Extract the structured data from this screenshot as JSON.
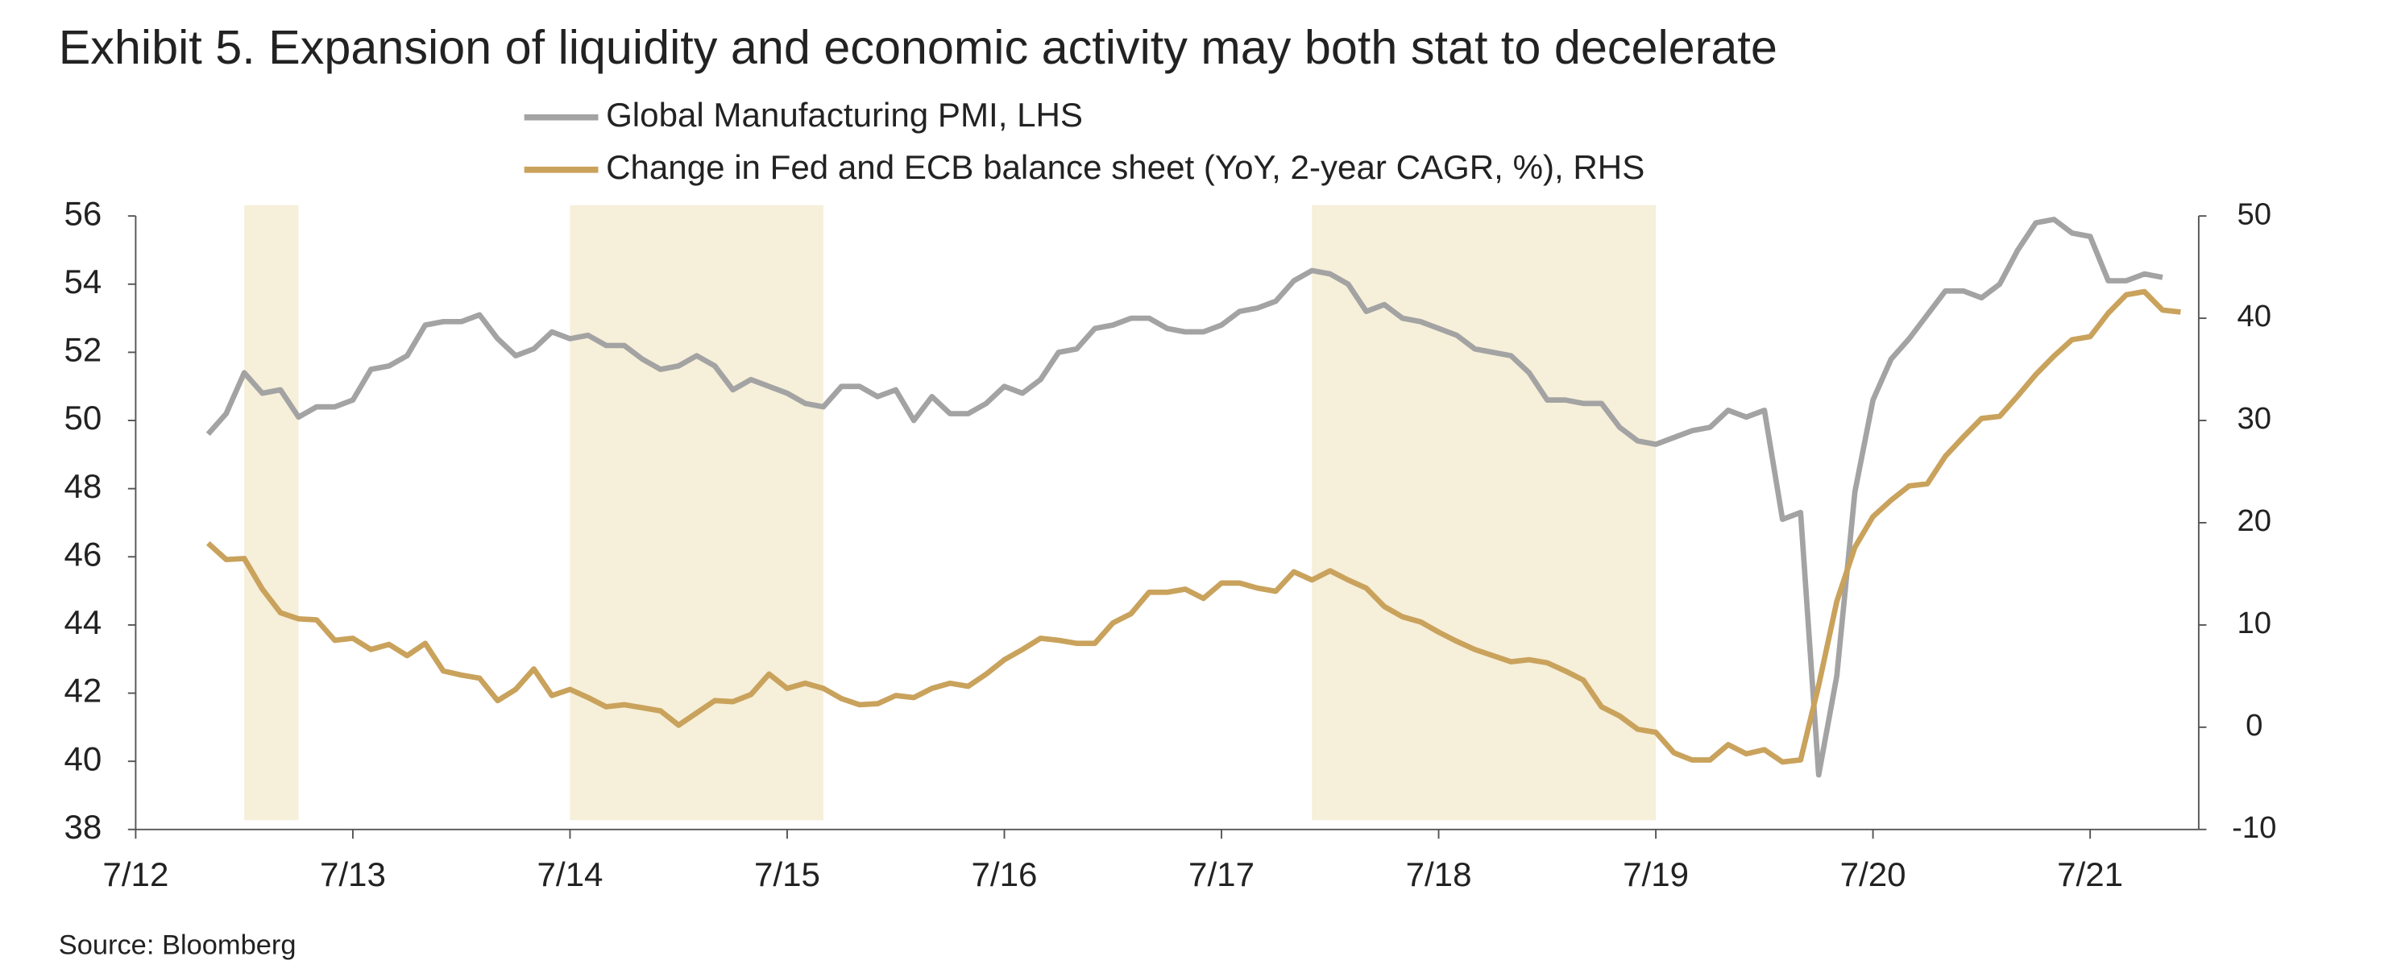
{
  "chart_data": {
    "type": "line",
    "title": "Exhibit 5. Expansion of liquidity and economic activity may both stat to decelerate",
    "source": "Source: Bloomberg",
    "x": [
      "2012-11",
      "2012-12",
      "2013-01",
      "2013-02",
      "2013-03",
      "2013-04",
      "2013-05",
      "2013-06",
      "2013-07",
      "2013-08",
      "2013-09",
      "2013-10",
      "2013-11",
      "2013-12",
      "2014-01",
      "2014-02",
      "2014-03",
      "2014-04",
      "2014-05",
      "2014-06",
      "2014-07",
      "2014-08",
      "2014-09",
      "2014-10",
      "2014-11",
      "2014-12",
      "2015-01",
      "2015-02",
      "2015-03",
      "2015-04",
      "2015-05",
      "2015-06",
      "2015-07",
      "2015-08",
      "2015-09",
      "2015-10",
      "2015-11",
      "2015-12",
      "2016-01",
      "2016-02",
      "2016-03",
      "2016-04",
      "2016-05",
      "2016-06",
      "2016-07",
      "2016-08",
      "2016-09",
      "2016-10",
      "2016-11",
      "2016-12",
      "2017-01",
      "2017-02",
      "2017-03",
      "2017-04",
      "2017-05",
      "2017-06",
      "2017-07",
      "2017-08",
      "2017-09",
      "2017-10",
      "2017-11",
      "2017-12",
      "2018-01",
      "2018-02",
      "2018-03",
      "2018-04",
      "2018-05",
      "2018-06",
      "2018-07",
      "2018-08",
      "2018-09",
      "2018-10",
      "2018-11",
      "2018-12",
      "2019-01",
      "2019-02",
      "2019-03",
      "2019-04",
      "2019-05",
      "2019-06",
      "2019-07",
      "2019-08",
      "2019-09",
      "2019-10",
      "2019-11",
      "2019-12",
      "2020-01",
      "2020-02",
      "2020-03",
      "2020-04",
      "2020-05",
      "2020-06",
      "2020-07",
      "2020-08",
      "2020-09",
      "2020-10",
      "2020-11",
      "2020-12",
      "2021-01",
      "2021-02",
      "2021-03",
      "2021-04",
      "2021-05",
      "2021-06",
      "2021-07",
      "2021-08",
      "2021-09",
      "2021-10",
      "2021-11",
      "2021-12"
    ],
    "series": [
      {
        "name": "Global Manufacturing PMI, LHS",
        "color": "#a3a3a3",
        "axis": "y",
        "values": [
          49.6,
          50.2,
          51.4,
          50.8,
          50.9,
          50.1,
          50.4,
          50.4,
          50.6,
          51.5,
          51.6,
          51.9,
          52.8,
          52.9,
          52.9,
          53.1,
          52.4,
          51.9,
          52.1,
          52.6,
          52.4,
          52.5,
          52.2,
          52.2,
          51.8,
          51.5,
          51.6,
          51.9,
          51.6,
          50.9,
          51.2,
          51.0,
          50.8,
          50.5,
          50.4,
          51.0,
          51.0,
          50.7,
          50.9,
          50.0,
          50.7,
          50.2,
          50.2,
          50.5,
          51.0,
          50.8,
          51.2,
          52.0,
          52.1,
          52.7,
          52.8,
          53.0,
          53.0,
          52.7,
          52.6,
          52.6,
          52.8,
          53.2,
          53.3,
          53.5,
          54.1,
          54.4,
          54.3,
          54.0,
          53.2,
          53.4,
          53.0,
          52.9,
          52.7,
          52.5,
          52.1,
          52.0,
          51.9,
          51.4,
          50.6,
          50.6,
          50.5,
          50.5,
          49.8,
          49.4,
          49.3,
          49.5,
          49.7,
          49.8,
          50.3,
          50.1,
          50.3,
          47.1,
          47.3,
          39.6,
          42.5,
          47.9,
          50.6,
          51.8,
          52.4,
          53.1,
          53.8,
          53.8,
          53.6,
          54.0,
          55.0,
          55.8,
          55.9,
          55.5,
          55.4,
          54.1,
          54.1,
          54.3,
          54.2,
          null
        ]
      },
      {
        "name": "Change in Fed and ECB balance sheet (YoY, 2-year CAGR, %), RHS",
        "color": "#c9a25c",
        "axis": "y2",
        "values": [
          18.0,
          16.4,
          16.5,
          13.5,
          11.2,
          10.6,
          10.5,
          8.5,
          8.7,
          7.6,
          8.1,
          7.0,
          8.2,
          5.5,
          5.1,
          4.8,
          2.6,
          3.7,
          5.7,
          3.1,
          3.7,
          2.9,
          2.0,
          2.2,
          1.9,
          1.6,
          0.2,
          1.4,
          2.6,
          2.5,
          3.2,
          5.2,
          3.8,
          4.3,
          3.8,
          2.8,
          2.2,
          2.3,
          3.1,
          2.9,
          3.8,
          4.3,
          4.0,
          5.2,
          6.6,
          7.6,
          8.7,
          8.5,
          8.2,
          8.2,
          10.2,
          11.1,
          13.2,
          13.2,
          13.5,
          12.6,
          14.1,
          14.1,
          13.6,
          13.3,
          15.2,
          14.4,
          15.3,
          14.4,
          13.6,
          11.8,
          10.8,
          10.3,
          9.3,
          8.4,
          7.6,
          7.0,
          6.4,
          6.6,
          6.3,
          5.5,
          4.6,
          2.0,
          1.1,
          -0.2,
          -0.5,
          -2.5,
          -3.2,
          -3.2,
          -1.7,
          -2.6,
          -2.2,
          -3.4,
          -3.2,
          4.1,
          12.3,
          17.6,
          20.6,
          22.2,
          23.6,
          23.8,
          26.5,
          28.4,
          30.2,
          30.4,
          32.4,
          34.5,
          36.3,
          37.9,
          38.2,
          40.5,
          42.3,
          42.6,
          40.8,
          40.6
        ]
      }
    ],
    "shaded_periods": [
      {
        "start": "2013-01",
        "end": "2013-04"
      },
      {
        "start": "2014-07",
        "end": "2015-09"
      },
      {
        "start": "2017-12",
        "end": "2019-07"
      }
    ],
    "shade_color": "#f6efd9",
    "xlim": [
      "2012-07",
      "2022-01"
    ],
    "xticks": [
      {
        "value": "2012-07",
        "label": "7/12"
      },
      {
        "value": "2013-07",
        "label": "7/13"
      },
      {
        "value": "2014-07",
        "label": "7/14"
      },
      {
        "value": "2015-07",
        "label": "7/15"
      },
      {
        "value": "2016-07",
        "label": "7/16"
      },
      {
        "value": "2017-07",
        "label": "7/17"
      },
      {
        "value": "2018-07",
        "label": "7/18"
      },
      {
        "value": "2019-07",
        "label": "7/19"
      },
      {
        "value": "2020-07",
        "label": "7/20"
      },
      {
        "value": "2021-07",
        "label": "7/21"
      }
    ],
    "ylim": [
      38,
      56
    ],
    "yticks": [
      38,
      40,
      42,
      44,
      46,
      48,
      50,
      52,
      54,
      56
    ],
    "y2lim": [
      -10,
      50
    ],
    "y2ticks": [
      -10,
      0,
      10,
      20,
      30,
      40,
      50
    ],
    "grid": false
  }
}
